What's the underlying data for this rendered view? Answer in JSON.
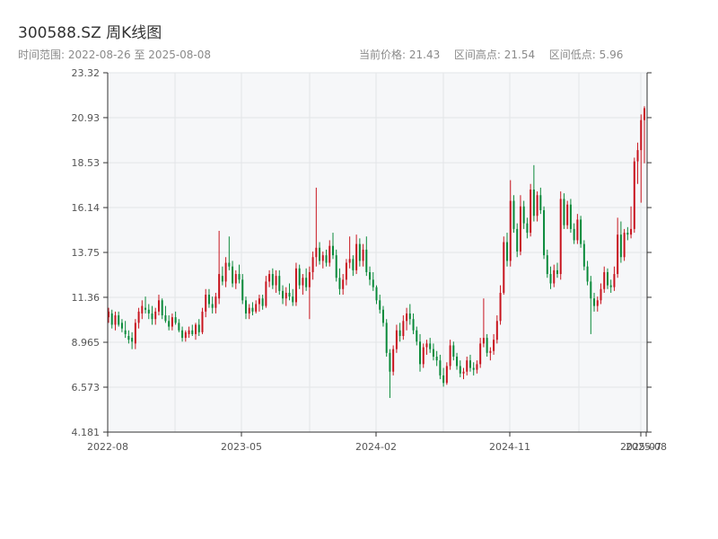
{
  "header": {
    "title": "300588.SZ 周K线图",
    "range_label": "时间范围:",
    "range_start": "2022-08-26",
    "range_sep": "至",
    "range_end": "2025-08-08",
    "price_label": "当前价格:",
    "price_value": "21.43",
    "high_label": "区间高点:",
    "high_value": "21.54",
    "low_label": "区间低点:",
    "low_value": "5.96"
  },
  "colors": {
    "up": "#c8141e",
    "down": "#0a8a3a",
    "plot_bg": "#f6f7f9",
    "grid": "#e3e5e8",
    "axis": "#333333"
  },
  "chart_data": {
    "type": "candlestick",
    "title": "300588.SZ 周K线图",
    "xlabel": "",
    "ylabel": "",
    "ylim": [
      4.181,
      23.32
    ],
    "y_ticks": [
      "23.32",
      "20.93",
      "18.53",
      "16.14",
      "13.75",
      "11.36",
      "8.965",
      "6.573",
      "4.181"
    ],
    "x_ticks": [
      "2022-08",
      "2023-05",
      "2024-02",
      "2024-11",
      "2025-07",
      "2025-08"
    ],
    "grid": true,
    "note_ohlc": "weekly OHLC, approximate readings from chart; index 0 = 2022-08-26 week",
    "ohlc": [
      [
        10.3,
        10.8,
        10.0,
        10.6
      ],
      [
        10.5,
        10.7,
        9.7,
        9.9
      ],
      [
        9.9,
        10.6,
        9.6,
        10.4
      ],
      [
        10.4,
        10.6,
        9.8,
        9.9
      ],
      [
        10.0,
        10.2,
        9.5,
        9.7
      ],
      [
        9.6,
        10.1,
        9.2,
        9.4
      ],
      [
        9.3,
        9.6,
        8.9,
        9.1
      ],
      [
        9.2,
        9.5,
        8.6,
        9.0
      ],
      [
        8.9,
        10.2,
        8.6,
        10.0
      ],
      [
        10.0,
        10.8,
        9.7,
        10.6
      ],
      [
        10.5,
        11.2,
        10.2,
        10.9
      ],
      [
        10.8,
        11.4,
        10.5,
        10.7
      ],
      [
        10.7,
        11.0,
        10.2,
        10.5
      ],
      [
        10.5,
        10.9,
        9.9,
        10.2
      ],
      [
        10.2,
        10.8,
        9.9,
        10.6
      ],
      [
        10.6,
        11.5,
        10.4,
        11.2
      ],
      [
        11.2,
        11.3,
        10.2,
        10.4
      ],
      [
        10.4,
        10.9,
        10.0,
        10.1
      ],
      [
        10.1,
        10.4,
        9.6,
        9.8
      ],
      [
        9.8,
        10.5,
        9.6,
        10.3
      ],
      [
        10.3,
        10.6,
        9.9,
        10.0
      ],
      [
        10.0,
        10.2,
        9.5,
        9.6
      ],
      [
        9.6,
        9.8,
        9.0,
        9.2
      ],
      [
        9.2,
        9.6,
        9.0,
        9.5
      ],
      [
        9.4,
        9.8,
        9.2,
        9.6
      ],
      [
        9.6,
        9.9,
        9.3,
        9.4
      ],
      [
        9.4,
        10.0,
        9.1,
        9.9
      ],
      [
        9.9,
        10.2,
        9.3,
        9.5
      ],
      [
        9.5,
        10.8,
        9.4,
        10.6
      ],
      [
        10.6,
        11.8,
        10.3,
        11.5
      ],
      [
        11.5,
        11.8,
        10.8,
        11.0
      ],
      [
        11.0,
        11.4,
        10.5,
        10.8
      ],
      [
        10.8,
        11.6,
        10.5,
        11.4
      ],
      [
        11.3,
        14.9,
        11.0,
        12.6
      ],
      [
        12.5,
        13.0,
        12.0,
        12.2
      ],
      [
        12.2,
        13.5,
        11.9,
        13.2
      ],
      [
        13.2,
        14.6,
        12.8,
        13.0
      ],
      [
        13.0,
        13.3,
        11.9,
        12.1
      ],
      [
        12.1,
        12.8,
        11.8,
        12.6
      ],
      [
        12.6,
        13.1,
        12.1,
        12.3
      ],
      [
        12.3,
        12.6,
        11.0,
        11.2
      ],
      [
        11.2,
        11.4,
        10.2,
        10.5
      ],
      [
        10.5,
        11.0,
        10.2,
        10.8
      ],
      [
        10.8,
        11.1,
        10.4,
        10.6
      ],
      [
        10.6,
        11.2,
        10.5,
        11.0
      ],
      [
        11.0,
        11.5,
        10.6,
        11.3
      ],
      [
        11.3,
        11.5,
        10.7,
        10.9
      ],
      [
        10.9,
        12.5,
        10.8,
        12.2
      ],
      [
        12.2,
        12.8,
        11.9,
        12.6
      ],
      [
        12.6,
        12.9,
        11.8,
        12.0
      ],
      [
        12.0,
        12.8,
        11.6,
        12.5
      ],
      [
        12.5,
        12.8,
        11.5,
        11.7
      ],
      [
        11.7,
        12.0,
        11.0,
        11.3
      ],
      [
        11.3,
        11.9,
        10.9,
        11.6
      ],
      [
        11.6,
        12.1,
        11.2,
        11.4
      ],
      [
        11.4,
        11.8,
        10.9,
        11.1
      ],
      [
        11.1,
        13.2,
        10.9,
        12.9
      ],
      [
        12.9,
        13.1,
        11.8,
        12.0
      ],
      [
        12.0,
        12.6,
        11.5,
        12.4
      ],
      [
        12.4,
        12.9,
        11.7,
        11.9
      ],
      [
        11.9,
        13.0,
        10.2,
        12.7
      ],
      [
        12.7,
        13.8,
        12.3,
        13.5
      ],
      [
        13.5,
        17.2,
        13.0,
        14.0
      ],
      [
        14.0,
        14.3,
        13.1,
        13.3
      ],
      [
        13.3,
        13.8,
        12.9,
        13.6
      ],
      [
        13.6,
        13.9,
        13.0,
        13.2
      ],
      [
        13.2,
        14.4,
        13.0,
        14.1
      ],
      [
        14.1,
        14.8,
        13.4,
        13.6
      ],
      [
        13.6,
        13.9,
        12.2,
        12.4
      ],
      [
        12.4,
        12.9,
        11.5,
        11.8
      ],
      [
        11.8,
        12.6,
        11.5,
        12.3
      ],
      [
        12.3,
        13.4,
        12.0,
        13.2
      ],
      [
        13.2,
        14.6,
        12.9,
        13.4
      ],
      [
        13.4,
        13.6,
        12.5,
        12.8
      ],
      [
        12.8,
        14.7,
        12.6,
        14.2
      ],
      [
        14.2,
        14.5,
        13.0,
        13.3
      ],
      [
        13.3,
        14.2,
        13.0,
        13.9
      ],
      [
        13.9,
        14.6,
        12.5,
        12.7
      ],
      [
        12.7,
        13.0,
        12.0,
        12.3
      ],
      [
        12.3,
        12.7,
        11.7,
        11.9
      ],
      [
        11.9,
        12.0,
        11.0,
        11.2
      ],
      [
        11.2,
        11.5,
        10.5,
        10.7
      ],
      [
        10.7,
        10.9,
        9.8,
        10.0
      ],
      [
        10.0,
        10.2,
        8.2,
        8.4
      ],
      [
        8.4,
        8.6,
        6.0,
        7.4
      ],
      [
        7.4,
        8.8,
        7.2,
        8.6
      ],
      [
        8.6,
        9.9,
        8.4,
        9.6
      ],
      [
        9.6,
        10.0,
        9.0,
        9.3
      ],
      [
        9.3,
        10.4,
        9.1,
        10.1
      ],
      [
        10.1,
        10.8,
        9.6,
        10.5
      ],
      [
        10.5,
        11.0,
        9.9,
        10.2
      ],
      [
        10.2,
        10.5,
        9.4,
        9.6
      ],
      [
        9.6,
        9.8,
        8.8,
        9.0
      ],
      [
        9.0,
        9.4,
        7.4,
        7.8
      ],
      [
        7.8,
        8.9,
        7.6,
        8.7
      ],
      [
        8.7,
        9.1,
        8.3,
        8.9
      ],
      [
        8.9,
        9.2,
        8.4,
        8.6
      ],
      [
        8.6,
        8.9,
        8.0,
        8.2
      ],
      [
        8.2,
        8.5,
        7.7,
        8.0
      ],
      [
        8.0,
        8.3,
        7.0,
        7.2
      ],
      [
        7.2,
        7.6,
        6.6,
        6.8
      ],
      [
        6.8,
        7.9,
        6.7,
        7.7
      ],
      [
        7.7,
        9.1,
        7.5,
        8.8
      ],
      [
        8.8,
        9.0,
        8.0,
        8.2
      ],
      [
        8.2,
        8.4,
        7.5,
        7.7
      ],
      [
        7.7,
        8.0,
        7.1,
        7.3
      ],
      [
        7.3,
        7.6,
        7.0,
        7.4
      ],
      [
        7.4,
        8.2,
        7.2,
        8.0
      ],
      [
        8.0,
        8.3,
        7.4,
        7.6
      ],
      [
        7.6,
        7.9,
        7.2,
        7.5
      ],
      [
        7.5,
        8.0,
        7.3,
        7.8
      ],
      [
        7.8,
        9.2,
        7.6,
        8.9
      ],
      [
        8.9,
        11.3,
        8.7,
        9.2
      ],
      [
        9.2,
        9.4,
        8.2,
        8.4
      ],
      [
        8.4,
        8.7,
        8.0,
        8.5
      ],
      [
        8.5,
        9.4,
        8.3,
        9.1
      ],
      [
        9.1,
        10.4,
        8.9,
        10.1
      ],
      [
        10.1,
        12.0,
        9.9,
        11.6
      ],
      [
        11.6,
        14.6,
        11.5,
        14.3
      ],
      [
        14.3,
        14.8,
        13.0,
        13.3
      ],
      [
        13.3,
        17.6,
        13.0,
        16.5
      ],
      [
        16.5,
        16.8,
        14.8,
        15.0
      ],
      [
        15.0,
        15.3,
        13.5,
        13.8
      ],
      [
        13.8,
        16.8,
        13.6,
        16.2
      ],
      [
        16.2,
        16.5,
        15.0,
        15.3
      ],
      [
        15.3,
        15.6,
        14.5,
        14.8
      ],
      [
        14.8,
        17.4,
        14.6,
        17.1
      ],
      [
        17.1,
        18.4,
        15.4,
        15.7
      ],
      [
        15.7,
        17.0,
        15.4,
        16.8
      ],
      [
        16.8,
        17.2,
        15.8,
        16.0
      ],
      [
        16.0,
        16.2,
        13.4,
        13.6
      ],
      [
        13.6,
        13.9,
        12.4,
        12.6
      ],
      [
        12.6,
        13.0,
        11.8,
        12.1
      ],
      [
        12.1,
        13.1,
        11.9,
        12.8
      ],
      [
        12.8,
        13.2,
        12.4,
        12.6
      ],
      [
        12.6,
        17.0,
        12.3,
        16.6
      ],
      [
        16.6,
        16.9,
        15.0,
        15.2
      ],
      [
        15.2,
        16.5,
        15.0,
        16.3
      ],
      [
        16.3,
        16.6,
        14.8,
        15.0
      ],
      [
        15.0,
        15.3,
        14.2,
        14.4
      ],
      [
        14.4,
        15.8,
        14.2,
        15.5
      ],
      [
        15.5,
        15.7,
        14.0,
        14.2
      ],
      [
        14.2,
        14.4,
        12.8,
        13.0
      ],
      [
        13.0,
        13.3,
        12.0,
        12.2
      ],
      [
        12.2,
        12.5,
        9.4,
        11.3
      ],
      [
        11.3,
        11.6,
        10.6,
        10.9
      ],
      [
        10.9,
        11.4,
        10.6,
        11.2
      ],
      [
        11.2,
        12.1,
        11.0,
        11.8
      ],
      [
        11.8,
        13.0,
        11.6,
        12.7
      ],
      [
        12.7,
        12.9,
        11.8,
        12.0
      ],
      [
        12.0,
        12.3,
        11.6,
        11.9
      ],
      [
        11.9,
        13.0,
        11.7,
        12.6
      ],
      [
        12.6,
        15.6,
        12.4,
        14.7
      ],
      [
        14.7,
        15.4,
        13.2,
        13.5
      ],
      [
        13.5,
        15.0,
        13.3,
        14.8
      ],
      [
        14.8,
        15.1,
        14.4,
        14.7
      ],
      [
        14.7,
        16.2,
        14.5,
        15.0
      ],
      [
        15.0,
        18.8,
        14.8,
        18.6
      ],
      [
        18.6,
        19.6,
        17.4,
        19.2
      ],
      [
        19.2,
        21.1,
        16.4,
        20.8
      ],
      [
        20.8,
        21.54,
        18.5,
        21.43
      ]
    ]
  }
}
